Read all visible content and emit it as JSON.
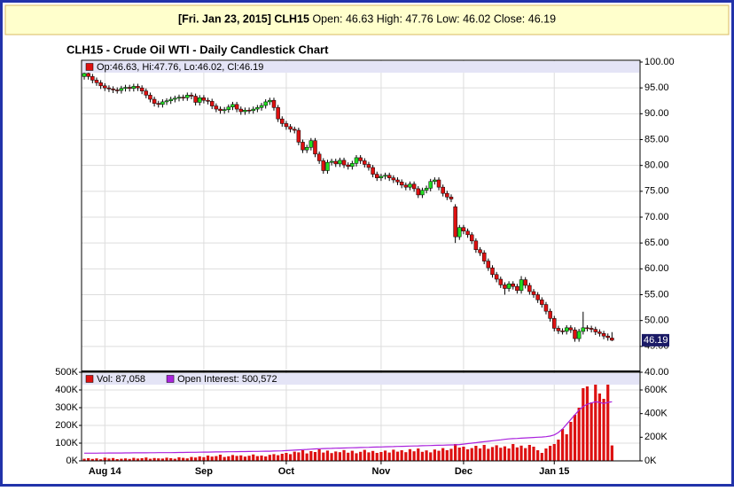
{
  "header": {
    "date": "[Fri. Jan 23, 2015]",
    "symbol": "CLH15",
    "labels": [
      "Open:",
      "High:",
      "Low:",
      "Close:"
    ]
  },
  "chart_data": [
    {
      "type": "candlestick",
      "title": "CLH15 - Crude Oil WTI - Daily Candlestick Chart",
      "legend": "Op:46.63, Hi:47.76, Lo:46.02, Cl:46.19",
      "up_color": "#22dd22",
      "down_color": "#dd1111",
      "ylim": [
        40,
        100
      ],
      "yticks": [
        {
          "value": 40,
          "label": "40.00"
        },
        {
          "value": 45,
          "label": "45.00"
        },
        {
          "value": 50,
          "label": "50.00"
        },
        {
          "value": 55,
          "label": "55.00"
        },
        {
          "value": 60,
          "label": "60.00"
        },
        {
          "value": 65,
          "label": "65.00"
        },
        {
          "value": 70,
          "label": "70.00"
        },
        {
          "value": 75,
          "label": "75.00"
        },
        {
          "value": 80,
          "label": "80.00"
        },
        {
          "value": 85,
          "label": "85.00"
        },
        {
          "value": 90,
          "label": "90.00"
        },
        {
          "value": 95,
          "label": "95.00"
        },
        {
          "value": 100,
          "label": "100.00"
        }
      ],
      "grid": true,
      "open": [
        97.2,
        97.8,
        97.2,
        96.5,
        96.0,
        95.4,
        95.0,
        94.8,
        94.6,
        94.5,
        94.9,
        95.1,
        94.9,
        95.3,
        95.0,
        94.4,
        93.6,
        92.8,
        92.0,
        91.8,
        92.3,
        92.5,
        92.8,
        93.0,
        93.2,
        93.1,
        93.6,
        93.4,
        92.2,
        93.1,
        92.6,
        92.4,
        91.5,
        90.9,
        90.6,
        90.8,
        91.3,
        91.8,
        90.9,
        90.4,
        90.7,
        90.6,
        90.9,
        91.2,
        91.6,
        92.3,
        92.6,
        91.2,
        89.0,
        88.1,
        87.5,
        87.0,
        86.8,
        84.5,
        83.0,
        83.5,
        84.8,
        82.2,
        80.9,
        79.0,
        80.6,
        80.8,
        80.3,
        81.0,
        80.1,
        79.8,
        80.4,
        81.5,
        80.9,
        80.2,
        79.6,
        78.3,
        77.6,
        77.9,
        78.1,
        77.6,
        77.2,
        76.8,
        76.2,
        75.8,
        76.4,
        75.5,
        74.3,
        75.2,
        75.6,
        76.9,
        77.2,
        75.8,
        74.6,
        73.9,
        72.0,
        66.2,
        68.0,
        67.3,
        66.6,
        65.4,
        63.7,
        63.1,
        61.5,
        60.2,
        58.9,
        58.0,
        56.9,
        56.2,
        57.1,
        56.6,
        55.8,
        57.9,
        56.8,
        55.6,
        55.0,
        54.0,
        53.1,
        51.8,
        50.4,
        48.5,
        48.0,
        47.9,
        48.6,
        48.2,
        46.5,
        47.9,
        48.6,
        48.5,
        48.3,
        47.8,
        47.5,
        47.0,
        46.63
      ],
      "high": [
        98.3,
        98.3,
        97.7,
        97.0,
        96.5,
        95.9,
        95.5,
        95.3,
        95.1,
        95.4,
        95.6,
        95.6,
        95.8,
        95.8,
        95.5,
        94.9,
        94.1,
        93.3,
        92.5,
        92.8,
        93.0,
        93.3,
        93.5,
        93.7,
        93.7,
        94.1,
        94.1,
        93.9,
        93.6,
        93.6,
        93.1,
        92.9,
        92.0,
        91.4,
        91.3,
        91.8,
        92.3,
        92.3,
        91.4,
        91.2,
        91.2,
        91.4,
        91.7,
        92.1,
        92.8,
        93.1,
        93.1,
        91.7,
        89.5,
        88.6,
        88.0,
        87.5,
        87.3,
        85.0,
        84.0,
        85.3,
        85.3,
        82.7,
        81.4,
        81.1,
        81.3,
        81.3,
        81.5,
        81.5,
        80.6,
        80.9,
        82.0,
        82.0,
        81.4,
        80.7,
        80.1,
        78.8,
        78.4,
        78.6,
        78.6,
        78.1,
        77.7,
        77.3,
        76.7,
        76.9,
        76.9,
        76.0,
        75.7,
        76.1,
        77.4,
        77.7,
        77.7,
        76.3,
        75.1,
        74.4,
        72.5,
        68.5,
        68.5,
        67.8,
        67.1,
        65.9,
        64.2,
        63.6,
        62.0,
        60.7,
        59.4,
        58.5,
        57.4,
        57.6,
        57.6,
        57.1,
        58.6,
        58.4,
        57.3,
        56.1,
        55.5,
        54.5,
        53.6,
        52.3,
        50.9,
        49.0,
        48.5,
        49.1,
        49.1,
        48.7,
        48.4,
        51.7,
        49.1,
        49.0,
        48.8,
        48.3,
        48.0,
        47.5,
        47.76
      ],
      "low": [
        96.6,
        96.6,
        95.9,
        95.4,
        94.8,
        94.4,
        94.2,
        94.0,
        93.9,
        93.9,
        94.3,
        94.3,
        94.3,
        94.4,
        93.8,
        93.0,
        92.2,
        91.4,
        91.2,
        91.2,
        91.7,
        91.9,
        92.2,
        92.4,
        92.5,
        92.5,
        92.8,
        91.6,
        91.6,
        92.0,
        91.8,
        90.9,
        90.3,
        90.0,
        90.0,
        90.2,
        90.7,
        90.3,
        89.8,
        89.8,
        90.0,
        90.0,
        90.3,
        90.6,
        91.0,
        91.7,
        90.6,
        88.4,
        87.5,
        86.9,
        86.4,
        86.2,
        83.9,
        82.4,
        82.4,
        82.9,
        81.6,
        80.3,
        78.4,
        78.4,
        80.0,
        79.7,
        79.7,
        79.5,
        79.2,
        79.2,
        79.8,
        80.3,
        79.6,
        79.0,
        77.7,
        77.0,
        77.0,
        77.3,
        77.0,
        76.6,
        76.2,
        75.6,
        75.2,
        75.2,
        74.9,
        73.7,
        73.7,
        74.6,
        75.0,
        76.3,
        75.2,
        74.0,
        73.3,
        72.9,
        65.0,
        65.6,
        66.7,
        66.0,
        64.8,
        63.1,
        62.5,
        60.9,
        59.6,
        58.3,
        57.4,
        56.3,
        55.0,
        55.6,
        56.0,
        55.2,
        55.2,
        56.2,
        55.0,
        54.4,
        53.4,
        52.5,
        51.2,
        49.8,
        47.9,
        47.4,
        47.3,
        47.3,
        47.6,
        45.9,
        45.9,
        47.3,
        47.9,
        47.7,
        47.2,
        46.9,
        46.4,
        46.1,
        46.02
      ],
      "close": [
        97.8,
        97.2,
        96.5,
        96.0,
        95.4,
        95.0,
        94.8,
        94.6,
        94.5,
        94.9,
        95.1,
        94.9,
        95.3,
        95.0,
        94.4,
        93.6,
        92.8,
        92.0,
        91.8,
        92.3,
        92.5,
        92.8,
        93.0,
        93.2,
        93.1,
        93.6,
        93.4,
        92.2,
        93.1,
        92.6,
        92.4,
        91.5,
        90.9,
        90.6,
        90.8,
        91.3,
        91.8,
        90.9,
        90.4,
        90.7,
        90.6,
        90.9,
        91.2,
        91.6,
        92.3,
        92.6,
        91.2,
        89.0,
        88.1,
        87.5,
        87.0,
        86.8,
        84.5,
        83.0,
        83.5,
        84.8,
        82.2,
        80.9,
        79.0,
        80.6,
        80.8,
        80.3,
        81.0,
        80.1,
        79.8,
        80.4,
        81.5,
        80.9,
        80.2,
        79.6,
        78.3,
        77.6,
        77.9,
        78.1,
        77.6,
        77.2,
        76.8,
        76.2,
        75.8,
        76.4,
        75.5,
        74.3,
        75.2,
        75.6,
        76.9,
        77.2,
        75.8,
        74.6,
        73.9,
        73.5,
        66.2,
        68.0,
        67.3,
        66.6,
        65.4,
        63.7,
        63.1,
        61.5,
        60.2,
        58.9,
        58.0,
        56.9,
        56.2,
        57.1,
        56.6,
        55.8,
        57.9,
        56.8,
        55.6,
        55.0,
        54.0,
        53.1,
        51.8,
        50.4,
        48.5,
        48.0,
        47.9,
        48.6,
        48.2,
        46.5,
        47.9,
        48.6,
        48.5,
        48.3,
        47.8,
        47.5,
        47.0,
        46.7,
        46.19
      ]
    },
    {
      "type": "volume",
      "xlim": [
        -0.65,
        134.8
      ],
      "xticks": [
        {
          "value": 5,
          "label": "Aug 14"
        },
        {
          "value": 29,
          "label": "Sep"
        },
        {
          "value": 49,
          "label": "Oct"
        },
        {
          "value": 72,
          "label": "Nov"
        },
        {
          "value": 92,
          "label": "Dec"
        },
        {
          "value": 114,
          "label": "Jan 15"
        }
      ],
      "ylim": [
        0,
        500000
      ],
      "yticks": [
        {
          "value": 0,
          "label": "0K"
        },
        {
          "value": 100000,
          "label": "100K"
        },
        {
          "value": 200000,
          "label": "200K"
        },
        {
          "value": 300000,
          "label": "300K"
        },
        {
          "value": 400000,
          "label": "400K"
        },
        {
          "value": 500000,
          "label": "500K"
        }
      ],
      "y2lim": [
        0,
        750000
      ],
      "y2ticks": [
        {
          "value": 0,
          "label": "0K"
        },
        {
          "value": 200000,
          "label": "200K"
        },
        {
          "value": 400000,
          "label": "400K"
        },
        {
          "value": 600000,
          "label": "600K"
        }
      ],
      "grid": true,
      "series": [
        {
          "name": "Vol: 87,058",
          "color": "#dd1111",
          "values": [
            12000,
            15000,
            11000,
            14000,
            9000,
            18000,
            13000,
            16000,
            10000,
            12000,
            14000,
            11000,
            17000,
            13000,
            15000,
            19000,
            12000,
            16000,
            14000,
            13000,
            18000,
            15000,
            12000,
            20000,
            17000,
            14000,
            22000,
            19000,
            25000,
            21000,
            30000,
            24000,
            27000,
            35000,
            22000,
            26000,
            33000,
            28000,
            31000,
            24000,
            29000,
            36000,
            27000,
            30000,
            25000,
            34000,
            38000,
            32000,
            40000,
            45000,
            38000,
            52000,
            48000,
            60000,
            42000,
            55000,
            50000,
            65000,
            47000,
            58000,
            44000,
            53000,
            49000,
            61000,
            46000,
            57000,
            43000,
            51000,
            62000,
            48000,
            56000,
            45000,
            50000,
            58000,
            47000,
            63000,
            52000,
            60000,
            49000,
            66000,
            54000,
            70000,
            51000,
            59000,
            48000,
            64000,
            57000,
            72000,
            60000,
            68000,
            95000,
            75000,
            80000,
            65000,
            72000,
            85000,
            70000,
            90000,
            68000,
            78000,
            88000,
            74000,
            82000,
            70000,
            95000,
            76000,
            86000,
            72000,
            90000,
            80000,
            60000,
            45000,
            70000,
            85000,
            95000,
            120000,
            180000,
            150000,
            220000,
            260000,
            300000,
            410000,
            420000,
            330000,
            450000,
            380000,
            350000,
            440000,
            87058
          ]
        },
        {
          "name": "Open Interest: 500,572",
          "color": "#aa22dd",
          "axis": "y2",
          "values": [
            65000,
            65000,
            65500,
            65500,
            66000,
            66000,
            66500,
            66500,
            67000,
            67000,
            67500,
            67500,
            68000,
            68000,
            68500,
            68500,
            69000,
            69000,
            69500,
            69500,
            70000,
            70000,
            70500,
            71000,
            71500,
            72000,
            72500,
            73000,
            73500,
            74000,
            74500,
            75000,
            75500,
            76000,
            76500,
            77000,
            77500,
            78000,
            78500,
            79000,
            79500,
            80000,
            80500,
            81000,
            81500,
            82000,
            83000,
            84000,
            85000,
            87000,
            89000,
            91000,
            93000,
            95000,
            97000,
            99000,
            101000,
            103000,
            104000,
            105000,
            106000,
            107000,
            108000,
            109000,
            110000,
            111000,
            112000,
            113000,
            114000,
            115000,
            116000,
            117000,
            118000,
            119000,
            120000,
            121000,
            122000,
            123000,
            124000,
            125000,
            126000,
            127000,
            128000,
            129000,
            130000,
            131000,
            132000,
            133000,
            134000,
            135000,
            136000,
            138000,
            142000,
            146000,
            150000,
            154000,
            158000,
            162000,
            166000,
            170000,
            174000,
            178000,
            182000,
            186000,
            188000,
            190000,
            192000,
            194000,
            196000,
            198000,
            200000,
            202000,
            205000,
            210000,
            220000,
            240000,
            270000,
            310000,
            350000,
            390000,
            430000,
            460000,
            480000,
            490000,
            500000,
            495000,
            485000,
            495000,
            500572
          ]
        }
      ]
    }
  ]
}
